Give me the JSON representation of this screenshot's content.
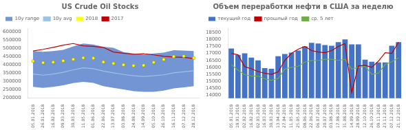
{
  "chart_data": [
    {
      "type": "line",
      "title": "US Crude Oil Stocks",
      "categories": [
        "05.01.2018",
        "26.01.2018",
        "16.02.2018",
        "09.03.2018",
        "30.03.2018",
        "11.05.2018",
        "01.06.2018",
        "22.06.2018",
        "13.07.2018",
        "03.08.2018",
        "24.08.2018",
        "14.09.2018",
        "05.10.2018",
        "26.10.2018",
        "16.11.2018",
        "07.12.2018",
        "28.12.2018"
      ],
      "ylim": [
        200000,
        620000
      ],
      "yticks": [
        200000,
        250000,
        300000,
        350000,
        400000,
        450000,
        500000,
        550000,
        600000
      ],
      "grid": false,
      "legend": "upper left",
      "series": [
        {
          "name": "10y range",
          "type": "area",
          "color": "#4472c4",
          "lower": [
            268000,
            262000,
            268000,
            277000,
            290000,
            298000,
            292000,
            272000,
            262000,
            252000,
            242000,
            238000,
            238000,
            245000,
            258000,
            265000,
            272000
          ],
          "upper": [
            483000,
            478000,
            483000,
            490000,
            510000,
            528000,
            522000,
            508000,
            502000,
            476000,
            468000,
            462000,
            468000,
            473000,
            488000,
            486000,
            483000
          ]
        },
        {
          "name": "10y avg",
          "color": "#9dc3e6",
          "values": [
            345000,
            338000,
            345000,
            355000,
            370000,
            382000,
            377000,
            362000,
            352000,
            342000,
            334000,
            330000,
            334000,
            340000,
            352000,
            358000,
            364000
          ]
        },
        {
          "name": "2018",
          "color": "#ffff00",
          "marker": "o",
          "line_style": "none",
          "values": [
            422000,
            413000,
            416000,
            424000,
            433000,
            442000,
            440000,
            417000,
            408000,
            400000,
            395000,
            397000,
            415000,
            432000,
            450000,
            452000,
            441000
          ]
        },
        {
          "name": "2017",
          "color": "#c00000",
          "values": [
            483000,
            493000,
            505000,
            518000,
            528000,
            514000,
            511000,
            504000,
            477000,
            470000,
            463000,
            467000,
            460000,
            451000,
            447000,
            445000,
            438000
          ]
        }
      ]
    },
    {
      "type": "bar",
      "title": "Объем переработки нефти в США за неделю",
      "categories": [
        "05.01.2018",
        "19.01.2018",
        "02.02.2018",
        "16.02.2018",
        "02.03.2018",
        "16.03.2018",
        "30.03.2018",
        "13.04.2018",
        "27.04.2018",
        "11.05.2018",
        "25.05.2018",
        "08.06.2018",
        "22.06.2018",
        "06.07.2018",
        "20.07.2018",
        "03.08.2018",
        "17.08.2018",
        "31.08.2018",
        "14.09.2018",
        "28.09.2018",
        "12.10.2018",
        "26.10.2018",
        "09.11.2018",
        "23.11.2018",
        "07.12.2018",
        "21.12.2018"
      ],
      "ylim": [
        13800,
        18800
      ],
      "yticks": [
        14000,
        14500,
        15000,
        15500,
        16000,
        16500,
        17000,
        17500,
        18000,
        18500
      ],
      "grid": false,
      "legend": "upper left",
      "series": [
        {
          "name": "текущий год",
          "type": "bar",
          "color": "#4472c4",
          "values": [
            17350,
            16900,
            17000,
            16700,
            16500,
            15950,
            15900,
            16800,
            16950,
            17050,
            17200,
            17500,
            17750,
            17700,
            17600,
            17550,
            17800,
            18000,
            17650,
            17650,
            16550,
            16400,
            16350,
            16350,
            17550,
            17800
          ]
        },
        {
          "name": "прошлый год",
          "type": "line",
          "color": "#c00000",
          "values": [
            17000,
            16900,
            16050,
            15900,
            15700,
            15580,
            15500,
            15680,
            16500,
            17000,
            17300,
            17500,
            17200,
            17100,
            17050,
            17200,
            17500,
            17700,
            14200,
            16100,
            16150,
            16000,
            16450,
            17050,
            17000,
            17800
          ]
        },
        {
          "name": "ср. 5 лет",
          "type": "line",
          "color": "#70ad47",
          "values": [
            16200,
            15800,
            15480,
            15380,
            15380,
            15180,
            15080,
            15200,
            15880,
            16000,
            16080,
            16380,
            16480,
            16500,
            16580,
            16580,
            16500,
            16580,
            15880,
            16000,
            16080,
            15500,
            15580,
            16200,
            16400,
            16680
          ]
        }
      ]
    }
  ]
}
